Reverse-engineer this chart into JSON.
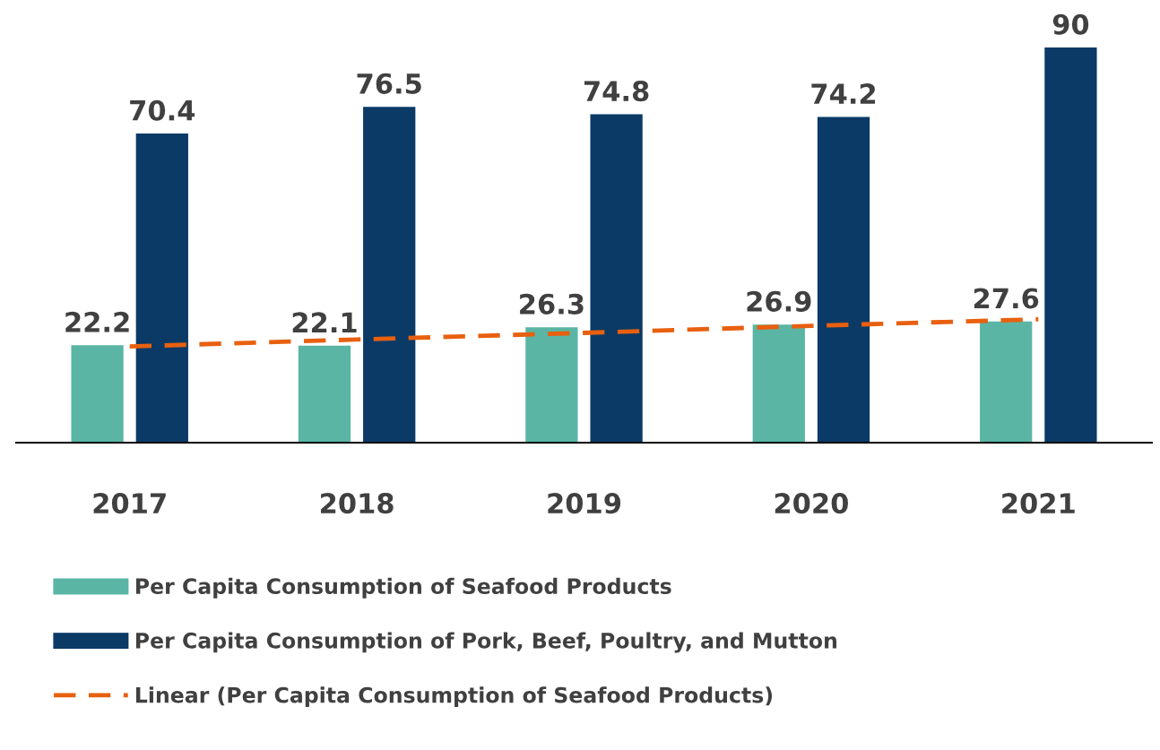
{
  "chart_data": {
    "type": "bar",
    "categories": [
      "2017",
      "2018",
      "2019",
      "2020",
      "2021"
    ],
    "series": [
      {
        "name": "Per Capita Consumption of Seafood Products",
        "color": "#5ab5a5",
        "values": [
          22.2,
          22.1,
          26.3,
          26.9,
          27.6
        ],
        "value_labels": [
          "22.2",
          "22.1",
          "26.3",
          "26.9",
          "27.6"
        ]
      },
      {
        "name": "Per Capita Consumption of Pork, Beef, Poultry, and Mutton",
        "color": "#0b3a66",
        "values": [
          70.4,
          76.5,
          74.8,
          74.2,
          90
        ],
        "value_labels": [
          "70.4",
          "76.5",
          "74.8",
          "74.2",
          "90"
        ]
      },
      {
        "name": "Linear (Per Capita Consumption of Seafood Products)",
        "type": "line",
        "color": "#e8600f",
        "line_style": "dashed",
        "values": [
          21.9,
          23.5,
          25.0,
          26.6,
          28.1
        ]
      }
    ],
    "legend": "bottom left",
    "grid": false
  }
}
